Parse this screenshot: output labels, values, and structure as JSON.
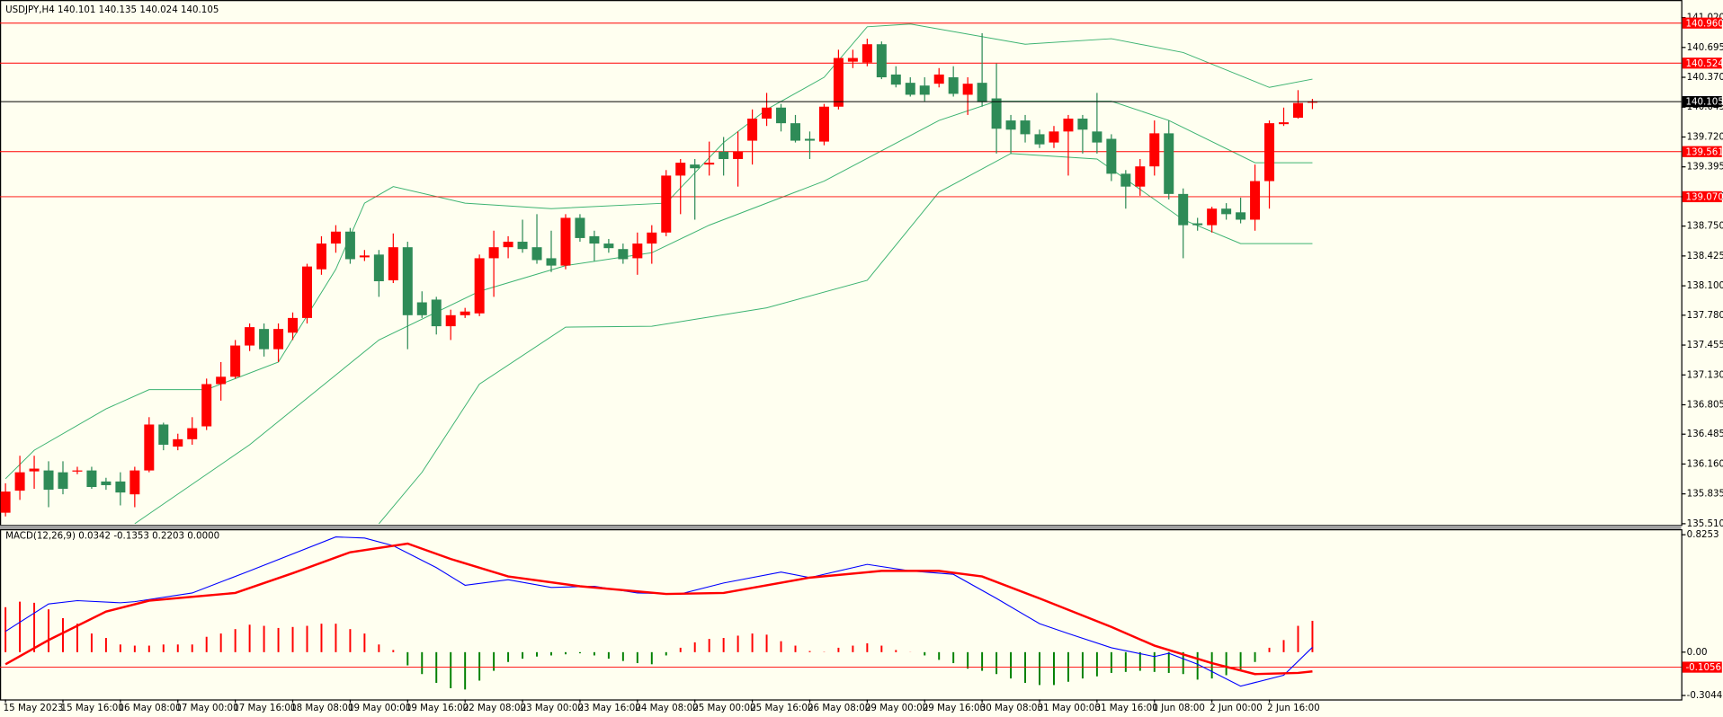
{
  "chart_data": [
    {
      "type": "candlestick",
      "symbol": "USDJPY,H4",
      "up_color": "#ff0000",
      "down_color": "#2e8b57",
      "categories": [
        "15 May 2023",
        null,
        null,
        null,
        "15 May 16:00",
        null,
        null,
        null,
        "16 May 08:00",
        null,
        null,
        null,
        "17 May 00:00",
        null,
        null,
        null,
        "17 May 16:00",
        null,
        null,
        null,
        "18 May 08:00",
        null,
        null,
        null,
        "19 May 00:00",
        null,
        null,
        null,
        "19 May 16:00",
        null,
        null,
        null,
        "22 May 08:00",
        null,
        null,
        null,
        "23 May 00:00",
        null,
        null,
        null,
        "23 May 16:00",
        null,
        null,
        null,
        "24 May 08:00",
        null,
        null,
        null,
        "25 May 00:00",
        null,
        null,
        null,
        "25 May 16:00",
        null,
        null,
        null,
        "26 May 08:00",
        null,
        null,
        null,
        "29 May 00:00",
        null,
        null,
        null,
        "29 May 16:00",
        null,
        null,
        null,
        "30 May 08:00",
        null,
        null,
        null,
        "31 May 00:00",
        null,
        null,
        null,
        "31 May 16:00",
        null,
        null,
        null,
        "1 Jun 08:00",
        null,
        null,
        null,
        "2 Jun 00:00",
        null,
        null,
        null,
        "2 Jun 16:00",
        null,
        null,
        null
      ],
      "open": [
        135.63,
        135.87,
        136.08,
        136.09,
        136.07,
        136.08,
        136.09,
        135.97,
        135.97,
        135.83,
        136.09,
        136.59,
        136.35,
        136.43,
        136.57,
        137.03,
        137.11,
        137.45,
        137.63,
        137.41,
        137.59,
        137.75,
        138.28,
        138.56,
        138.69,
        138.41,
        138.44,
        138.16,
        138.52,
        137.92,
        137.95,
        137.66,
        137.78,
        137.8,
        138.4,
        138.52,
        138.58,
        138.52,
        138.4,
        138.32,
        138.84,
        138.64,
        138.56,
        138.5,
        138.4,
        138.56,
        138.68,
        139.3,
        139.42,
        139.42,
        139.56,
        139.48,
        139.68,
        139.92,
        140.04,
        139.87,
        139.7,
        139.67,
        140.05,
        140.54,
        140.53,
        140.73,
        140.4,
        140.31,
        140.28,
        140.3,
        140.37,
        140.18,
        140.31,
        140.14,
        139.9,
        139.9,
        139.75,
        139.66,
        139.78,
        139.92,
        139.78,
        139.7,
        139.32,
        139.18,
        139.4,
        139.76,
        139.1,
        138.78,
        138.76,
        138.94,
        138.9,
        138.82,
        139.24,
        139.86,
        139.93,
        140.101
      ],
      "high": [
        135.95,
        136.25,
        136.25,
        136.19,
        136.19,
        136.13,
        136.13,
        136.01,
        136.07,
        136.13,
        136.67,
        136.61,
        136.49,
        136.67,
        137.09,
        137.27,
        137.51,
        137.69,
        137.69,
        137.69,
        137.81,
        138.34,
        138.64,
        138.76,
        138.73,
        138.49,
        138.49,
        138.67,
        138.58,
        138.04,
        137.98,
        137.84,
        137.86,
        138.44,
        138.7,
        138.64,
        138.82,
        138.88,
        138.7,
        138.88,
        138.88,
        138.7,
        138.61,
        138.56,
        138.68,
        138.76,
        139.36,
        139.48,
        139.48,
        139.67,
        139.72,
        139.78,
        140.02,
        140.2,
        140.08,
        139.96,
        139.78,
        140.08,
        140.67,
        140.67,
        140.79,
        140.76,
        140.49,
        140.37,
        140.37,
        140.47,
        140.49,
        140.37,
        140.85,
        140.52,
        139.96,
        139.96,
        139.8,
        139.84,
        139.96,
        139.96,
        140.2,
        139.75,
        139.36,
        139.48,
        139.9,
        139.9,
        139.16,
        138.84,
        138.96,
        139.0,
        139.06,
        139.42,
        139.9,
        140.04,
        140.23,
        140.135
      ],
      "low": [
        135.59,
        135.77,
        135.89,
        135.69,
        135.83,
        136.05,
        135.89,
        135.88,
        135.71,
        135.69,
        136.07,
        136.31,
        136.31,
        136.37,
        136.53,
        136.85,
        137.09,
        137.39,
        137.33,
        137.27,
        137.51,
        137.69,
        138.22,
        138.46,
        138.34,
        138.37,
        137.98,
        138.13,
        137.41,
        137.75,
        137.57,
        137.51,
        137.75,
        137.77,
        137.98,
        138.4,
        138.46,
        138.34,
        138.25,
        138.28,
        138.58,
        138.37,
        138.46,
        138.34,
        138.22,
        138.34,
        138.64,
        138.88,
        138.82,
        139.3,
        139.3,
        139.18,
        139.42,
        139.84,
        139.78,
        139.66,
        139.48,
        139.63,
        140.02,
        140.47,
        140.49,
        140.35,
        140.26,
        140.16,
        140.11,
        140.26,
        140.16,
        139.96,
        140.05,
        139.54,
        139.54,
        139.66,
        139.6,
        139.6,
        139.3,
        139.54,
        139.54,
        139.24,
        138.94,
        139.08,
        139.3,
        139.04,
        138.4,
        138.7,
        138.68,
        138.82,
        138.78,
        138.7,
        138.94,
        139.84,
        139.92,
        140.024
      ],
      "close": [
        135.86,
        136.07,
        136.11,
        135.88,
        135.89,
        136.09,
        135.91,
        135.93,
        135.85,
        136.09,
        136.59,
        136.37,
        136.43,
        136.55,
        137.03,
        137.11,
        137.45,
        137.65,
        137.41,
        137.63,
        137.75,
        138.31,
        138.56,
        138.69,
        138.39,
        138.43,
        138.15,
        138.52,
        137.78,
        137.78,
        137.66,
        137.78,
        137.82,
        138.4,
        138.52,
        138.58,
        138.5,
        138.38,
        138.32,
        138.84,
        138.62,
        138.56,
        138.51,
        138.39,
        138.56,
        138.68,
        139.3,
        139.44,
        139.38,
        139.44,
        139.48,
        139.56,
        139.92,
        140.04,
        139.87,
        139.68,
        139.68,
        140.05,
        140.58,
        140.58,
        140.73,
        140.37,
        140.29,
        140.18,
        140.18,
        140.4,
        140.19,
        140.3,
        140.1,
        139.81,
        139.8,
        139.75,
        139.64,
        139.78,
        139.92,
        139.8,
        139.66,
        139.32,
        139.18,
        139.4,
        139.76,
        139.1,
        138.76,
        138.76,
        138.94,
        138.88,
        138.82,
        139.24,
        139.87,
        139.88,
        140.09,
        140.105
      ],
      "bands": [
        {
          "color": "#3cb371",
          "x": [
            0,
            2,
            7,
            10,
            14,
            19,
            23,
            25,
            27,
            32,
            38,
            46,
            50,
            53,
            57,
            60,
            63,
            71,
            77,
            82,
            88,
            91
          ],
          "values": [
            136.0,
            136.31,
            136.76,
            136.97,
            136.97,
            137.27,
            138.28,
            139.0,
            139.18,
            139.0,
            138.94,
            139.0,
            139.66,
            140.02,
            140.37,
            140.92,
            140.95,
            140.73,
            140.79,
            140.64,
            140.26,
            140.35
          ]
        },
        {
          "color": "#3cb371",
          "x": [
            9,
            17,
            26,
            33,
            39,
            45,
            49,
            57,
            65,
            69,
            77,
            81,
            87,
            91
          ],
          "values": [
            135.51,
            136.37,
            137.51,
            138.04,
            138.32,
            138.46,
            138.76,
            139.24,
            139.9,
            140.11,
            140.11,
            139.9,
            139.44,
            139.44
          ]
        },
        {
          "color": "#3cb371",
          "x": [
            26,
            29,
            33,
            39,
            45,
            53,
            60,
            65,
            70,
            76,
            82,
            86,
            91
          ],
          "values": [
            135.51,
            136.07,
            137.03,
            137.65,
            137.66,
            137.86,
            138.16,
            139.12,
            139.54,
            139.48,
            138.82,
            138.56,
            138.56
          ]
        }
      ],
      "levels": [
        {
          "value": 140.96,
          "label": "140.960"
        },
        140.524,
        139.561,
        {
          "value": 139.07,
          "label": "139.070"
        }
      ],
      "level_color": "#ff0000",
      "ylim": [
        135.498,
        141.211
      ],
      "yticks": [
        {
          "value": 141.02,
          "label": "141.020"
        },
        {
          "value": 140.695,
          "label": "140.695"
        },
        {
          "value": 140.37,
          "label": "140.370"
        },
        {
          "value": 140.045,
          "label": "140.045"
        },
        {
          "value": 139.72,
          "label": "139.720"
        },
        {
          "value": 139.395,
          "label": "139.395"
        },
        {
          "value": 139.07,
          "label": "139.070"
        },
        {
          "value": 138.75,
          "label": "138.750"
        },
        {
          "value": 138.425,
          "label": "138.425"
        },
        {
          "value": 138.1,
          "label": "138.100"
        },
        {
          "value": 137.78,
          "label": "137.780"
        },
        {
          "value": 137.455,
          "label": "137.455"
        },
        {
          "value": 137.13,
          "label": "137.130"
        },
        {
          "value": 136.805,
          "label": "136.805"
        },
        {
          "value": 136.485,
          "label": "136.485"
        },
        {
          "value": 136.16,
          "label": "136.160"
        },
        {
          "value": 135.835,
          "label": "135.835"
        },
        {
          "value": 135.51,
          "label": "135.510"
        }
      ]
    },
    {
      "type": "macd",
      "title": "MACD(12,26,9) 0.0342 -0.1353 0.2203 0.0000",
      "up_color": "#ff0000",
      "down_color": "#008000",
      "histogram": [
        0.316,
        0.355,
        0.347,
        0.301,
        0.239,
        0.2,
        0.131,
        0.1,
        0.054,
        0.046,
        0.046,
        0.054,
        0.054,
        0.054,
        0.108,
        0.131,
        0.162,
        0.193,
        0.185,
        0.17,
        0.177,
        0.185,
        0.2,
        0.2,
        0.162,
        0.131,
        0.054,
        0.015,
        -0.093,
        -0.154,
        -0.216,
        -0.254,
        -0.262,
        -0.2,
        -0.131,
        -0.069,
        -0.046,
        -0.031,
        -0.023,
        -0.015,
        -0.008,
        -0.023,
        -0.046,
        -0.062,
        -0.077,
        -0.085,
        -0.023,
        0.031,
        0.069,
        0.093,
        0.1,
        0.116,
        0.131,
        0.123,
        0.077,
        0.046,
        0.008,
        0.002,
        0.031,
        0.046,
        0.062,
        0.046,
        0.015,
        0.001,
        -0.023,
        -0.054,
        -0.077,
        -0.116,
        -0.131,
        -0.154,
        -0.185,
        -0.216,
        -0.231,
        -0.231,
        -0.208,
        -0.185,
        -0.17,
        -0.146,
        -0.139,
        -0.131,
        -0.139,
        -0.146,
        -0.154,
        -0.193,
        -0.185,
        -0.162,
        -0.123,
        -0.069,
        0.031,
        0.085,
        0.185,
        0.2203
      ],
      "lines": [
        {
          "color": "#0000ff",
          "x": [
            0,
            3,
            5,
            8,
            9,
            13,
            17,
            23,
            25,
            27,
            30,
            32,
            35,
            38,
            41,
            44,
            47,
            50,
            54,
            56,
            60,
            63,
            66,
            69,
            72,
            74,
            77,
            80,
            81,
            83,
            86,
            89,
            91
          ],
          "values": [
            0.146,
            0.339,
            0.362,
            0.347,
            0.355,
            0.416,
            0.571,
            0.81,
            0.802,
            0.748,
            0.594,
            0.47,
            0.509,
            0.455,
            0.463,
            0.416,
            0.409,
            0.486,
            0.563,
            0.524,
            0.617,
            0.571,
            0.547,
            0.378,
            0.2,
            0.131,
            0.031,
            -0.031,
            -0.008,
            -0.085,
            -0.239,
            -0.162,
            0.0342
          ]
        },
        {
          "color": "#ff0000",
          "x": [
            0,
            3,
            7,
            10,
            16,
            20,
            24,
            28,
            31,
            35,
            40,
            46,
            50,
            56,
            61,
            65,
            68,
            72,
            77,
            80,
            84,
            87,
            90,
            91
          ],
          "values": [
            -0.085,
            0.085,
            0.285,
            0.362,
            0.416,
            0.555,
            0.702,
            0.763,
            0.655,
            0.532,
            0.463,
            0.409,
            0.416,
            0.524,
            0.571,
            0.571,
            0.532,
            0.378,
            0.177,
            0.046,
            -0.077,
            -0.154,
            -0.146,
            -0.1353
          ]
        }
      ],
      "levels": [
        -0.1056
      ],
      "level_color": "#ff0000",
      "ylim": [
        -0.332,
        0.864
      ],
      "yticks": [
        0.8253,
        {
          "value": 0,
          "label": "0.00"
        },
        -0.3044
      ]
    }
  ]
}
